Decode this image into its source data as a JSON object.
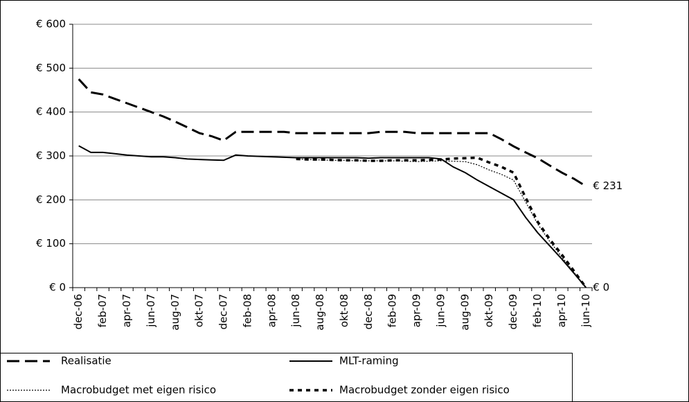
{
  "chart_data": {
    "type": "line",
    "categories": [
      "dec-06",
      null,
      "feb-07",
      null,
      "apr-07",
      null,
      "jun-07",
      null,
      "aug-07",
      null,
      "okt-07",
      null,
      "dec-07",
      null,
      "feb-08",
      null,
      "apr-08",
      null,
      "jun-08",
      null,
      "aug-08",
      null,
      "okt-08",
      null,
      "dec-08",
      null,
      "feb-09",
      null,
      "apr-09",
      null,
      "jun-09",
      null,
      "aug-09",
      null,
      "okt-09",
      null,
      "dec-09",
      null,
      "feb-10",
      null,
      "apr-10",
      null,
      "jun-10"
    ],
    "series": [
      {
        "name": "Realisatie",
        "color": "#000000",
        "values": [
          475,
          445,
          440,
          430,
          420,
          410,
          400,
          390,
          378,
          365,
          352,
          345,
          335,
          355,
          355,
          355,
          355,
          355,
          352,
          352,
          352,
          352,
          352,
          352,
          352,
          355,
          355,
          355,
          352,
          352,
          352,
          352,
          352,
          352,
          352,
          338,
          322,
          308,
          295,
          278,
          262,
          248,
          231
        ],
        "value_labels": [
          null,
          null,
          null,
          null,
          null,
          null,
          null,
          null,
          null,
          null,
          null,
          null,
          null,
          null,
          null,
          null,
          null,
          null,
          null,
          null,
          null,
          null,
          null,
          null,
          null,
          null,
          null,
          null,
          null,
          null,
          null,
          null,
          null,
          null,
          null,
          null,
          null,
          null,
          null,
          null,
          null,
          null,
          "€ 231"
        ]
      },
      {
        "name": "MLT-raming",
        "color": "#000000",
        "values": [
          323,
          308,
          308,
          305,
          302,
          300,
          298,
          298,
          296,
          293,
          292,
          291,
          290,
          302,
          300,
          299,
          298,
          297,
          296,
          296,
          296,
          296,
          296,
          296,
          295,
          296,
          296,
          296,
          296,
          296,
          293,
          275,
          262,
          245,
          230,
          215,
          200,
          160,
          125,
          95,
          65,
          33,
          0
        ],
        "value_labels": [
          null,
          null,
          null,
          null,
          null,
          null,
          null,
          null,
          null,
          null,
          null,
          null,
          null,
          null,
          null,
          null,
          null,
          null,
          null,
          null,
          null,
          null,
          null,
          null,
          null,
          null,
          null,
          null,
          null,
          null,
          null,
          null,
          null,
          null,
          null,
          null,
          null,
          null,
          null,
          null,
          null,
          null,
          "€ 0"
        ]
      },
      {
        "name": "Macrobudget met eigen risico",
        "color": "#000000",
        "values": [
          null,
          null,
          null,
          null,
          null,
          null,
          null,
          null,
          null,
          null,
          null,
          null,
          null,
          null,
          null,
          null,
          null,
          null,
          293,
          292,
          291,
          290,
          290,
          289,
          289,
          289,
          289,
          288,
          287,
          288,
          289,
          288,
          287,
          280,
          268,
          258,
          245,
          195,
          145,
          105,
          70,
          35,
          0
        ]
      },
      {
        "name": "Macrobudget zonder eigen risico",
        "color": "#000000",
        "values": [
          null,
          null,
          null,
          null,
          null,
          null,
          null,
          null,
          null,
          null,
          null,
          null,
          null,
          null,
          null,
          null,
          null,
          null,
          293,
          292,
          292,
          291,
          290,
          290,
          289,
          289,
          290,
          290,
          290,
          291,
          292,
          294,
          295,
          296,
          285,
          275,
          262,
          205,
          150,
          110,
          75,
          38,
          0
        ]
      }
    ],
    "ylim": [
      0,
      600
    ],
    "yticks": [
      {
        "value": 0,
        "label": "€ 0"
      },
      {
        "value": 100,
        "label": "€ 100"
      },
      {
        "value": 200,
        "label": "€ 200"
      },
      {
        "value": 300,
        "label": "€ 300"
      },
      {
        "value": 400,
        "label": "€ 400"
      },
      {
        "value": 500,
        "label": "€ 500"
      },
      {
        "value": 600,
        "label": "€ 600"
      }
    ],
    "grid": true,
    "legend": "bottom"
  }
}
